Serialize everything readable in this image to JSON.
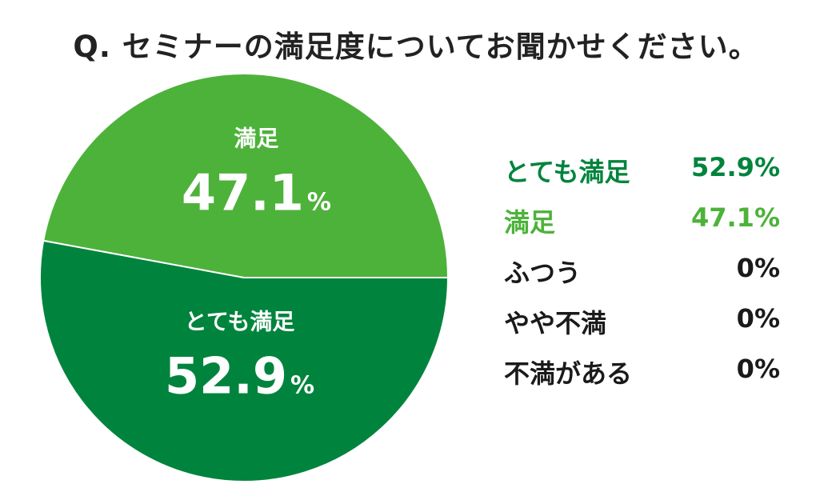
{
  "chart_data": {
    "type": "pie",
    "title": "Q. セミナーの満足度についてお聞かせください。",
    "categories": [
      "とても満足",
      "満足",
      "ふつう",
      "やや不満",
      "不満がある"
    ],
    "values": [
      52.9,
      47.1,
      0,
      0,
      0
    ],
    "value_labels": [
      "52.9%",
      "47.1%",
      "0%",
      "0%",
      "0%"
    ],
    "unit": "%",
    "colors": [
      "#00843d",
      "#4db23a",
      "#1a1a1a",
      "#1a1a1a",
      "#1a1a1a"
    ],
    "legend_placement": "right"
  }
}
